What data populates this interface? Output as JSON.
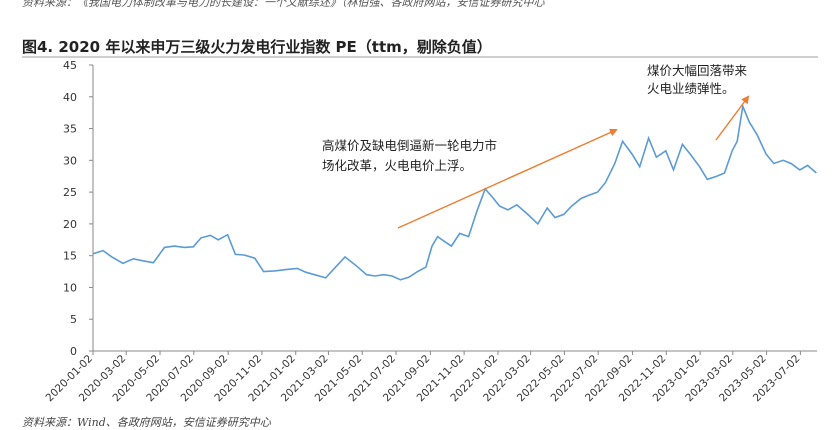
{
  "header": {
    "top_source": "资料来源：《我国电力体制改革与电力的长建设：一个文献综述》（林伯强、各政府网站，安信证券研究中心",
    "title": "图4. 2020 年以来申万三级火力发电行业指数 PE（ttm，剔除负值）",
    "bottom_source": "资料来源：Wind、各政府网站，安信证券研究中心"
  },
  "colors": {
    "line": "#5b9bd5",
    "arrow": "#ed7d31",
    "axis": "#888888",
    "text": "#222222"
  },
  "chart_data": {
    "type": "line",
    "title": "图4. 2020 年以来申万三级火力发电行业指数 PE（ttm，剔除负值）",
    "xlabel": "",
    "ylabel": "",
    "ylim": [
      0,
      45
    ],
    "yticks": [
      0,
      5,
      10,
      15,
      20,
      25,
      30,
      35,
      40,
      45
    ],
    "grid": false,
    "xtick_labels": [
      "2020-01-02",
      "2020-03-02",
      "2020-05-02",
      "2020-07-02",
      "2020-09-02",
      "2020-11-02",
      "2021-01-02",
      "2021-03-02",
      "2021-05-02",
      "2021-07-02",
      "2021-09-02",
      "2021-11-02",
      "2022-01-02",
      "2022-03-02",
      "2022-05-02",
      "2022-07-02",
      "2022-09-02",
      "2022-11-02",
      "2023-01-02",
      "2023-03-02",
      "2023-05-02",
      "2023-07-02"
    ],
    "series": [
      {
        "x": [
          "2020-01-02",
          "2020-01-20",
          "2020-02-05",
          "2020-02-25",
          "2020-03-15",
          "2020-04-01",
          "2020-04-20",
          "2020-05-10",
          "2020-05-28",
          "2020-06-15",
          "2020-07-01",
          "2020-07-15",
          "2020-08-01",
          "2020-08-15",
          "2020-09-01",
          "2020-09-15",
          "2020-10-01",
          "2020-10-20",
          "2020-11-05",
          "2020-11-25",
          "2020-12-15",
          "2021-01-05",
          "2021-01-20",
          "2021-02-05",
          "2021-02-25",
          "2021-03-15",
          "2021-04-01",
          "2021-04-20",
          "2021-05-10",
          "2021-05-25",
          "2021-06-10",
          "2021-06-25",
          "2021-07-10",
          "2021-07-25",
          "2021-08-10",
          "2021-08-25",
          "2021-09-05",
          "2021-09-15",
          "2021-09-28",
          "2021-10-10",
          "2021-10-25",
          "2021-11-10",
          "2021-11-25",
          "2021-12-10",
          "2021-12-25",
          "2022-01-05",
          "2022-01-20",
          "2022-02-05",
          "2022-02-25",
          "2022-03-15",
          "2022-04-01",
          "2022-04-15",
          "2022-05-01",
          "2022-05-15",
          "2022-06-01",
          "2022-06-15",
          "2022-07-01",
          "2022-07-15",
          "2022-08-01",
          "2022-08-15",
          "2022-09-01",
          "2022-09-15",
          "2022-10-01",
          "2022-10-15",
          "2022-11-01",
          "2022-11-15",
          "2022-12-01",
          "2022-12-15",
          "2023-01-01",
          "2023-01-15",
          "2023-02-01",
          "2023-02-15",
          "2023-03-01",
          "2023-03-10",
          "2023-03-20",
          "2023-04-01",
          "2023-04-15",
          "2023-05-01",
          "2023-05-15",
          "2023-06-01",
          "2023-06-15",
          "2023-07-01",
          "2023-07-15",
          "2023-07-31"
        ],
        "values": [
          15.3,
          15.8,
          14.8,
          13.8,
          14.5,
          14.2,
          13.9,
          16.3,
          16.5,
          16.3,
          16.4,
          17.8,
          18.2,
          17.5,
          18.3,
          15.2,
          15.1,
          14.6,
          12.5,
          12.6,
          12.8,
          13.0,
          12.4,
          12.0,
          11.5,
          13.2,
          14.8,
          13.5,
          12.0,
          11.8,
          12.0,
          11.8,
          11.2,
          11.6,
          12.5,
          13.2,
          16.5,
          18.0,
          17.2,
          16.5,
          18.5,
          18.0,
          22.0,
          25.5,
          24.0,
          22.8,
          22.2,
          23.0,
          21.5,
          20.0,
          22.5,
          21.0,
          21.5,
          22.8,
          24.0,
          24.5,
          25.0,
          26.5,
          29.5,
          33.0,
          31.0,
          29.0,
          33.5,
          30.5,
          31.5,
          28.5,
          32.5,
          31.0,
          29.0,
          27.0,
          27.5,
          28.0,
          31.5,
          33.0,
          38.5,
          36.0,
          34.0,
          31.0,
          29.5,
          30.0,
          29.5,
          28.5,
          29.2,
          28.0
        ]
      }
    ],
    "annotations": [
      {
        "text_lines": [
          "高煤价及缺电倒逼新一轮电力市",
          "场化改革，火电电价上浮。"
        ]
      },
      {
        "text_lines": [
          "煤价大幅回落带来",
          "火电业绩弹性。"
        ]
      }
    ]
  }
}
